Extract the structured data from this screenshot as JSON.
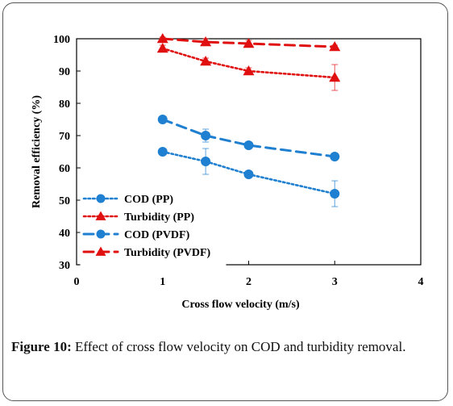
{
  "figure": {
    "caption_label": "Figure 10:",
    "caption_text": " Effect of cross flow velocity on COD and turbidity removal."
  },
  "chart_data": {
    "type": "line",
    "xlabel": "Cross flow velocity (m/s)",
    "ylabel": "Removal efficiency (%)",
    "xlim": [
      0,
      4
    ],
    "ylim": [
      30,
      100
    ],
    "x_ticks": [
      0,
      1,
      2,
      3,
      4
    ],
    "y_ticks": [
      30,
      40,
      50,
      60,
      70,
      80,
      90,
      100
    ],
    "grid": false,
    "legend_position": "bottom-left",
    "series": [
      {
        "name": "COD (PP)",
        "color": "#1f7fd0",
        "marker": "circle",
        "line": "dotted",
        "x": [
          1,
          1.5,
          2,
          3
        ],
        "y": [
          65,
          62,
          58,
          52
        ],
        "err": [
          1,
          4,
          1,
          4
        ]
      },
      {
        "name": "Turbidity (PP)",
        "color": "#e01010",
        "marker": "triangle",
        "line": "dotted",
        "x": [
          1,
          1.5,
          2,
          3
        ],
        "y": [
          97,
          93,
          90,
          88
        ],
        "err": [
          1,
          1,
          1,
          4
        ]
      },
      {
        "name": "COD (PVDF)",
        "color": "#1f7fd0",
        "marker": "circle",
        "line": "dashed",
        "x": [
          1,
          1.5,
          2,
          3
        ],
        "y": [
          75,
          70,
          67,
          63.5
        ],
        "err": [
          1,
          2,
          1,
          1
        ]
      },
      {
        "name": "Turbidity (PVDF)",
        "color": "#e01010",
        "marker": "triangle",
        "line": "dashed",
        "x": [
          1,
          1.5,
          2,
          3
        ],
        "y": [
          100,
          99,
          98.5,
          97.5
        ],
        "err": [
          0.5,
          1,
          1,
          0.5
        ]
      }
    ]
  }
}
